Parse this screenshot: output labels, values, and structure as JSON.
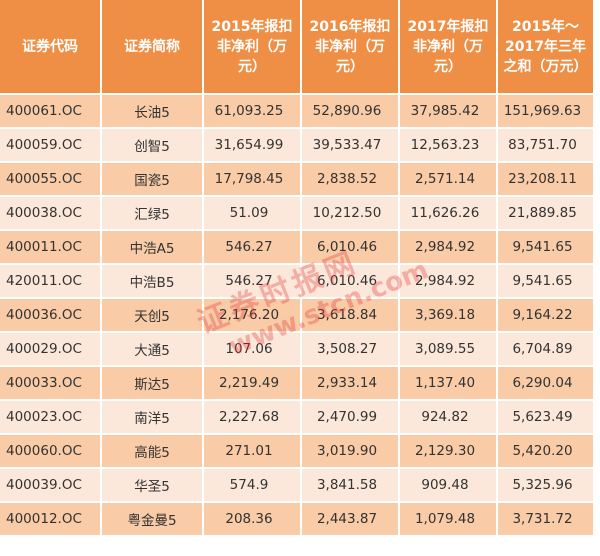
{
  "headers": [
    "证券代码",
    "证券简称",
    "2015年报扣非净利（万元）",
    "2016年报扣非净利（万元）",
    "2017年报扣非净利（万元）",
    "2015年～2017年三年之和（万元）"
  ],
  "rows": [
    [
      "400061.OC",
      "长油5",
      "61,093.25",
      "52,890.96",
      "37,985.42",
      "151,969.63"
    ],
    [
      "400059.OC",
      "创智5",
      "31,654.99",
      "39,533.47",
      "12,563.23",
      "83,751.70"
    ],
    [
      "400055.OC",
      "国瓷5",
      "17,798.45",
      "2,838.52",
      "2,571.14",
      "23,208.11"
    ],
    [
      "400038.OC",
      "汇绿5",
      "51.09",
      "10,212.50",
      "11,626.26",
      "21,889.85"
    ],
    [
      "400011.OC",
      "中浩A5",
      "546.27",
      "6,010.46",
      "2,984.92",
      "9,541.65"
    ],
    [
      "420011.OC",
      "中浩B5",
      "546.27",
      "6,010.46",
      "2,984.92",
      "9,541.65"
    ],
    [
      "400036.OC",
      "天创5",
      "2,176.20",
      "3,618.84",
      "3,369.18",
      "9,164.22"
    ],
    [
      "400029.OC",
      "大通5",
      "107.06",
      "3,508.27",
      "3,089.55",
      "6,704.89"
    ],
    [
      "400033.OC",
      "斯达5",
      "2,219.49",
      "2,933.14",
      "1,137.40",
      "6,290.04"
    ],
    [
      "400023.OC",
      "南洋5",
      "2,227.68",
      "2,470.99",
      "924.82",
      "5,623.49"
    ],
    [
      "400060.OC",
      "高能5",
      "271.01",
      "3,019.90",
      "2,129.30",
      "5,420.20"
    ],
    [
      "400039.OC",
      "华圣5",
      "574.9",
      "3,841.58",
      "909.48",
      "5,325.96"
    ],
    [
      "400012.OC",
      "粤金曼5",
      "208.36",
      "2,443.87",
      "1,079.48",
      "3,731.72"
    ]
  ],
  "watermark": {
    "name": "证券时报网",
    "url": "www.stcn.com"
  },
  "colors": {
    "header": "#ef8f45",
    "row_dark": "#f9cba6",
    "row_light": "#fce8da"
  }
}
